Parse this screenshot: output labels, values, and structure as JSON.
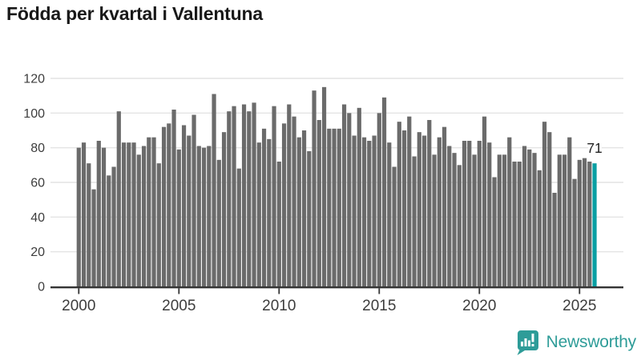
{
  "title": "Födda per kvartal i Vallentuna",
  "annotation": "71",
  "logo": {
    "text": "Newsworthy"
  },
  "colors": {
    "bar": "#6b6b6b",
    "highlight": "#0a9fa3",
    "grid": "#e4e4e4",
    "axis": "#333333",
    "tick_label": "#3d3d3d",
    "title": "#191919",
    "annotation": "#222222",
    "logo": "#2e9c98"
  },
  "chart_data": {
    "type": "bar",
    "title": "Födda per kvartal i Vallentuna",
    "frequency": "quarterly",
    "start": "2000 Q1",
    "end": "2025 Q4",
    "x_start_year": 2000,
    "values": [
      80,
      83,
      71,
      56,
      84,
      80,
      64,
      69,
      101,
      83,
      83,
      83,
      76,
      81,
      86,
      86,
      71,
      92,
      94,
      102,
      79,
      93,
      87,
      99,
      81,
      80,
      81,
      111,
      73,
      89,
      101,
      104,
      68,
      105,
      101,
      106,
      83,
      91,
      85,
      104,
      72,
      94,
      105,
      98,
      86,
      90,
      78,
      113,
      96,
      115,
      91,
      91,
      91,
      105,
      100,
      87,
      103,
      86,
      84,
      87,
      100,
      109,
      83,
      69,
      95,
      90,
      98,
      75,
      89,
      87,
      96,
      76,
      86,
      92,
      81,
      77,
      70,
      84,
      84,
      76,
      84,
      98,
      83,
      63,
      76,
      76,
      86,
      72,
      72,
      81,
      79,
      77,
      67,
      95,
      89,
      54,
      76,
      76,
      86,
      62,
      73,
      74,
      72,
      71
    ],
    "highlight_index": 103,
    "highlight_value": 71,
    "x_tick_years": [
      2000,
      2005,
      2010,
      2015,
      2020,
      2025
    ],
    "y_ticks": [
      0,
      20,
      40,
      60,
      80,
      100,
      120
    ],
    "ylim": [
      0,
      120
    ],
    "xlabel": "",
    "ylabel": "",
    "grid": "horizontal",
    "legend": "none"
  }
}
